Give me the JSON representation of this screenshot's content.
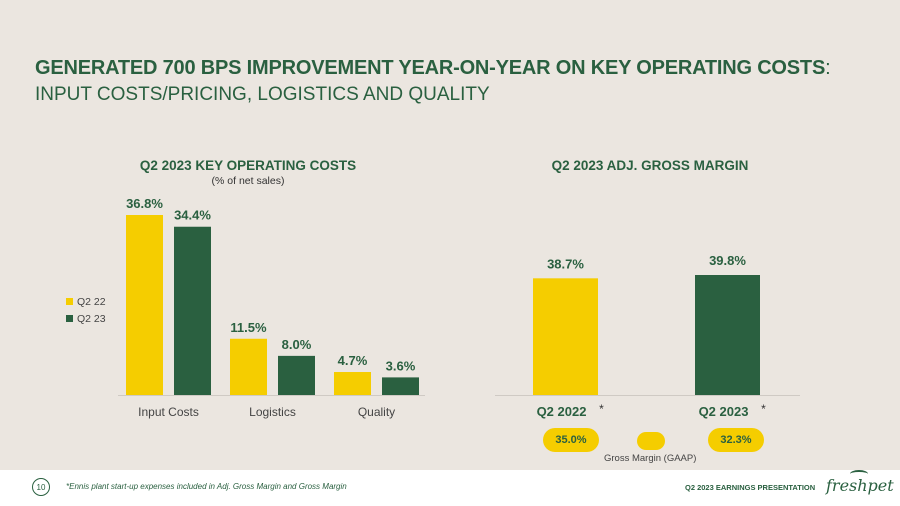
{
  "slide": {
    "title_main": "GENERATED 700 BPS IMPROVEMENT YEAR-ON-YEAR ON KEY OPERATING COSTS",
    "title_colon": ":",
    "title_sub": "INPUT COSTS/PRICING, LOGISTICS AND QUALITY"
  },
  "colors": {
    "yellow": "#f5cd00",
    "green": "#2a6040",
    "background": "#ebe6e0"
  },
  "chart_data": [
    {
      "type": "bar",
      "title": "Q2 2023 KEY OPERATING COSTS",
      "subtitle": "(% of net sales)",
      "categories": [
        "Input Costs",
        "Logistics",
        "Quality"
      ],
      "series": [
        {
          "name": "Q2 22",
          "values": [
            36.8,
            11.5,
            4.7
          ],
          "labels": [
            "36.8%",
            "11.5%",
            "4.7%"
          ]
        },
        {
          "name": "Q2 23",
          "values": [
            34.4,
            8.0,
            3.6
          ],
          "labels": [
            "34.4%",
            "8.0%",
            "3.6%"
          ]
        }
      ],
      "ylim": [
        0,
        36.8
      ],
      "legend": "left"
    },
    {
      "type": "bar",
      "title": "Q2 2023 ADJ. GROSS MARGIN",
      "categories": [
        "Q2 2022",
        "Q2 2023"
      ],
      "category_marks": [
        "*",
        "*"
      ],
      "values": [
        38.7,
        39.8
      ],
      "labels": [
        "38.7%",
        "39.8%"
      ],
      "ylim": [
        0,
        39.8
      ],
      "gaap": {
        "label": "Gross Margin (GAAP)",
        "values": [
          "35.0%",
          "32.3%"
        ]
      }
    }
  ],
  "footer": {
    "page_number": "10",
    "footnote": "*Ennis plant start-up expenses included in Adj. Gross Margin and Gross Margin",
    "presentation_label": "Q2 2023 EARNINGS PRESENTATION",
    "logo_text": "freshpet"
  }
}
